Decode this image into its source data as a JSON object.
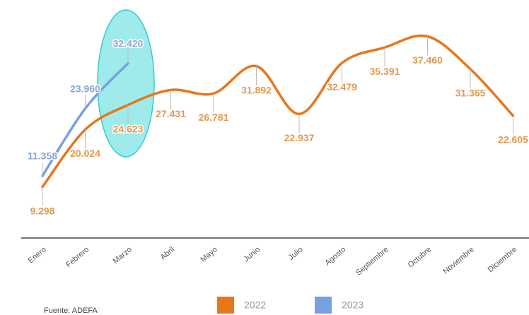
{
  "chart_data": {
    "type": "line",
    "categories": [
      "Enero",
      "Febrero",
      "Marzo",
      "Abril",
      "Mayo",
      "Junio",
      "Julio",
      "Agosto",
      "Septiembre",
      "Octubre",
      "Noviembre",
      "Diciembre"
    ],
    "series": [
      {
        "name": "2022",
        "color": "#e8761a",
        "values": [
          9298,
          20024,
          24623,
          27431,
          26781,
          31892,
          22937,
          32479,
          35391,
          37460,
          31365,
          22605
        ],
        "value_labels": [
          "9.298",
          "20.024",
          "24.623",
          "27.431",
          "26.781",
          "31.892",
          "22.937",
          "32.479",
          "35.391",
          "37.460",
          "31.365",
          "22.605"
        ]
      },
      {
        "name": "2023",
        "color": "#77a0e0",
        "values": [
          11358,
          23960,
          32420,
          null,
          null,
          null,
          null,
          null,
          null,
          null,
          null,
          null
        ],
        "value_labels": [
          "11.358",
          "23.960",
          "32.420",
          null,
          null,
          null,
          null,
          null,
          null,
          null,
          null,
          null
        ]
      }
    ],
    "ylim": [
      0,
      44000
    ],
    "source": "Fuente: ADEFA"
  }
}
